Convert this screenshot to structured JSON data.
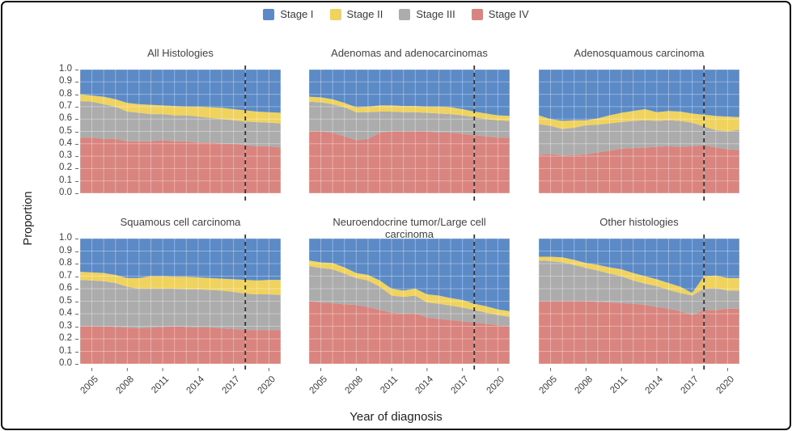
{
  "legend": {
    "items": [
      {
        "label": "Stage I",
        "color": "#5B8AC6"
      },
      {
        "label": "Stage II",
        "color": "#F0D35F"
      },
      {
        "label": "Stage III",
        "color": "#ACACAC"
      },
      {
        "label": "Stage IV",
        "color": "#D9847E"
      }
    ]
  },
  "axes": {
    "y_label": "Proportion",
    "x_label": "Year of diagnosis",
    "y_ticks": [
      "1.0",
      "0.9",
      "0.8",
      "0.7",
      "0.6",
      "0.5",
      "0.4",
      "0.3",
      "0.2",
      "0.1",
      "0.0"
    ],
    "x_ticks": [
      2005,
      2008,
      2011,
      2014,
      2017,
      2020
    ],
    "x_domain": [
      2004,
      2021
    ],
    "y_domain": [
      0,
      1
    ]
  },
  "reference_line": {
    "x": 2018,
    "style": "dashed",
    "color": "#333333"
  },
  "chart_data": [
    {
      "type": "area",
      "stacked": true,
      "title": "All Histologies",
      "slug": "all-histologies",
      "x": [
        2004,
        2005,
        2006,
        2007,
        2008,
        2009,
        2010,
        2011,
        2012,
        2013,
        2014,
        2015,
        2016,
        2017,
        2018,
        2019,
        2020,
        2021
      ],
      "series": [
        {
          "name": "Stage IV",
          "values": [
            0.45,
            0.45,
            0.44,
            0.44,
            0.42,
            0.42,
            0.42,
            0.43,
            0.42,
            0.42,
            0.41,
            0.41,
            0.4,
            0.4,
            0.39,
            0.38,
            0.38,
            0.37
          ]
        },
        {
          "name": "Stage III",
          "values": [
            0.295,
            0.29,
            0.28,
            0.26,
            0.24,
            0.23,
            0.22,
            0.21,
            0.21,
            0.21,
            0.21,
            0.2,
            0.2,
            0.19,
            0.19,
            0.195,
            0.19,
            0.195
          ]
        },
        {
          "name": "Stage II",
          "values": [
            0.055,
            0.05,
            0.06,
            0.06,
            0.07,
            0.07,
            0.075,
            0.07,
            0.075,
            0.07,
            0.08,
            0.085,
            0.09,
            0.09,
            0.09,
            0.085,
            0.085,
            0.085
          ]
        },
        {
          "name": "Stage I",
          "values": [
            0.2,
            0.21,
            0.22,
            0.24,
            0.27,
            0.28,
            0.285,
            0.29,
            0.295,
            0.3,
            0.3,
            0.305,
            0.31,
            0.32,
            0.33,
            0.34,
            0.345,
            0.35
          ]
        }
      ]
    },
    {
      "type": "area",
      "stacked": true,
      "title": "Adenomas and adenocarcinomas",
      "slug": "adenomas-and-adenocarcinomas",
      "x": [
        2004,
        2005,
        2006,
        2007,
        2008,
        2009,
        2010,
        2011,
        2012,
        2013,
        2014,
        2015,
        2016,
        2017,
        2018,
        2019,
        2020,
        2021
      ],
      "series": [
        {
          "name": "Stage IV",
          "values": [
            0.5,
            0.5,
            0.49,
            0.46,
            0.43,
            0.44,
            0.49,
            0.5,
            0.5,
            0.5,
            0.5,
            0.49,
            0.49,
            0.48,
            0.47,
            0.46,
            0.45,
            0.45
          ]
        },
        {
          "name": "Stage III",
          "values": [
            0.24,
            0.235,
            0.23,
            0.235,
            0.225,
            0.215,
            0.17,
            0.16,
            0.155,
            0.155,
            0.15,
            0.155,
            0.15,
            0.15,
            0.145,
            0.14,
            0.14,
            0.135
          ]
        },
        {
          "name": "Stage II",
          "values": [
            0.04,
            0.04,
            0.04,
            0.035,
            0.04,
            0.045,
            0.05,
            0.05,
            0.05,
            0.05,
            0.05,
            0.055,
            0.055,
            0.05,
            0.045,
            0.045,
            0.04,
            0.04
          ]
        },
        {
          "name": "Stage I",
          "values": [
            0.22,
            0.225,
            0.24,
            0.27,
            0.305,
            0.3,
            0.29,
            0.29,
            0.295,
            0.295,
            0.3,
            0.3,
            0.305,
            0.32,
            0.34,
            0.355,
            0.37,
            0.375
          ]
        }
      ]
    },
    {
      "type": "area",
      "stacked": true,
      "title": "Adenosquamous carcinoma",
      "slug": "adenosquamous-carcinoma",
      "x": [
        2004,
        2005,
        2006,
        2007,
        2008,
        2009,
        2010,
        2011,
        2012,
        2013,
        2014,
        2015,
        2016,
        2017,
        2018,
        2019,
        2020,
        2021
      ],
      "series": [
        {
          "name": "Stage IV",
          "values": [
            0.31,
            0.32,
            0.305,
            0.31,
            0.315,
            0.33,
            0.345,
            0.36,
            0.365,
            0.37,
            0.375,
            0.38,
            0.375,
            0.38,
            0.39,
            0.37,
            0.355,
            0.35
          ]
        },
        {
          "name": "Stage III",
          "values": [
            0.25,
            0.225,
            0.215,
            0.22,
            0.235,
            0.225,
            0.22,
            0.215,
            0.22,
            0.22,
            0.21,
            0.21,
            0.21,
            0.19,
            0.15,
            0.14,
            0.145,
            0.165
          ]
        },
        {
          "name": "Stage II",
          "values": [
            0.07,
            0.055,
            0.065,
            0.06,
            0.04,
            0.05,
            0.065,
            0.075,
            0.08,
            0.09,
            0.07,
            0.075,
            0.075,
            0.075,
            0.095,
            0.115,
            0.12,
            0.1
          ]
        },
        {
          "name": "Stage I",
          "values": [
            0.37,
            0.4,
            0.415,
            0.41,
            0.41,
            0.395,
            0.37,
            0.35,
            0.335,
            0.32,
            0.345,
            0.335,
            0.34,
            0.355,
            0.365,
            0.375,
            0.38,
            0.385
          ]
        }
      ]
    },
    {
      "type": "area",
      "stacked": true,
      "title": "Squamous cell carcinoma",
      "slug": "squamous-cell-carcinoma",
      "x": [
        2004,
        2005,
        2006,
        2007,
        2008,
        2009,
        2010,
        2011,
        2012,
        2013,
        2014,
        2015,
        2016,
        2017,
        2018,
        2019,
        2020,
        2021
      ],
      "series": [
        {
          "name": "Stage IV",
          "values": [
            0.3,
            0.3,
            0.3,
            0.295,
            0.29,
            0.285,
            0.29,
            0.295,
            0.3,
            0.295,
            0.29,
            0.29,
            0.285,
            0.28,
            0.27,
            0.27,
            0.27,
            0.27
          ]
        },
        {
          "name": "Stage III",
          "values": [
            0.37,
            0.365,
            0.36,
            0.35,
            0.325,
            0.315,
            0.31,
            0.305,
            0.3,
            0.3,
            0.305,
            0.3,
            0.3,
            0.295,
            0.29,
            0.285,
            0.285,
            0.28
          ]
        },
        {
          "name": "Stage II",
          "values": [
            0.065,
            0.065,
            0.065,
            0.065,
            0.07,
            0.085,
            0.1,
            0.1,
            0.095,
            0.1,
            0.095,
            0.095,
            0.095,
            0.1,
            0.11,
            0.11,
            0.115,
            0.12
          ]
        },
        {
          "name": "Stage I",
          "values": [
            0.265,
            0.27,
            0.275,
            0.29,
            0.315,
            0.315,
            0.3,
            0.3,
            0.305,
            0.305,
            0.31,
            0.315,
            0.32,
            0.325,
            0.33,
            0.335,
            0.33,
            0.33
          ]
        }
      ]
    },
    {
      "type": "area",
      "stacked": true,
      "title": "Neuroendocrine tumor/Large cell carcinoma",
      "slug": "neuroendocrine-tumor-large-cell-carcinoma",
      "x": [
        2004,
        2005,
        2006,
        2007,
        2008,
        2009,
        2010,
        2011,
        2012,
        2013,
        2014,
        2015,
        2016,
        2017,
        2018,
        2019,
        2020,
        2021
      ],
      "series": [
        {
          "name": "Stage IV",
          "values": [
            0.5,
            0.49,
            0.485,
            0.475,
            0.47,
            0.455,
            0.43,
            0.41,
            0.4,
            0.405,
            0.37,
            0.36,
            0.35,
            0.34,
            0.33,
            0.32,
            0.31,
            0.3
          ]
        },
        {
          "name": "Stage III",
          "values": [
            0.28,
            0.275,
            0.27,
            0.245,
            0.215,
            0.21,
            0.185,
            0.135,
            0.135,
            0.14,
            0.12,
            0.12,
            0.115,
            0.11,
            0.1,
            0.09,
            0.08,
            0.075
          ]
        },
        {
          "name": "Stage II",
          "values": [
            0.045,
            0.045,
            0.05,
            0.05,
            0.04,
            0.045,
            0.05,
            0.055,
            0.05,
            0.055,
            0.065,
            0.065,
            0.06,
            0.06,
            0.05,
            0.05,
            0.045,
            0.045
          ]
        },
        {
          "name": "Stage I",
          "values": [
            0.175,
            0.19,
            0.195,
            0.23,
            0.275,
            0.29,
            0.335,
            0.4,
            0.415,
            0.4,
            0.445,
            0.455,
            0.475,
            0.49,
            0.52,
            0.54,
            0.565,
            0.58
          ]
        }
      ]
    },
    {
      "type": "area",
      "stacked": true,
      "title": "Other histologies",
      "slug": "other-histologies",
      "x": [
        2004,
        2005,
        2006,
        2007,
        2008,
        2009,
        2010,
        2011,
        2012,
        2013,
        2014,
        2015,
        2016,
        2017,
        2018,
        2019,
        2020,
        2021
      ],
      "series": [
        {
          "name": "Stage IV",
          "values": [
            0.5,
            0.5,
            0.5,
            0.5,
            0.5,
            0.495,
            0.49,
            0.485,
            0.48,
            0.47,
            0.455,
            0.44,
            0.42,
            0.39,
            0.43,
            0.43,
            0.44,
            0.44
          ]
        },
        {
          "name": "Stage III",
          "values": [
            0.325,
            0.32,
            0.31,
            0.29,
            0.265,
            0.25,
            0.23,
            0.215,
            0.185,
            0.17,
            0.165,
            0.15,
            0.145,
            0.155,
            0.17,
            0.175,
            0.145,
            0.145
          ]
        },
        {
          "name": "Stage II",
          "values": [
            0.03,
            0.035,
            0.04,
            0.04,
            0.04,
            0.045,
            0.05,
            0.055,
            0.06,
            0.06,
            0.055,
            0.055,
            0.05,
            0.02,
            0.1,
            0.1,
            0.1,
            0.1
          ]
        },
        {
          "name": "Stage I",
          "values": [
            0.145,
            0.145,
            0.15,
            0.17,
            0.195,
            0.21,
            0.23,
            0.245,
            0.275,
            0.3,
            0.325,
            0.355,
            0.385,
            0.435,
            0.3,
            0.295,
            0.315,
            0.315
          ]
        }
      ]
    }
  ]
}
